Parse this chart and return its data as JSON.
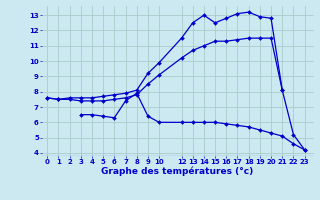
{
  "bg_color": "#cce8f0",
  "grid_color": "#aacccc",
  "line_color": "#0000cc",
  "marker": "D",
  "markersize": 2.0,
  "linewidth": 0.9,
  "xlabel": "Graphe des températures (°c)",
  "xlabel_fontsize": 6.5,
  "xlabel_color": "#0000cc",
  "xlim": [
    -0.5,
    23.8
  ],
  "ylim": [
    3.8,
    13.6
  ],
  "yticks": [
    4,
    5,
    6,
    7,
    8,
    9,
    10,
    11,
    12,
    13
  ],
  "xticks": [
    0,
    1,
    2,
    3,
    4,
    5,
    6,
    7,
    8,
    9,
    10,
    12,
    13,
    14,
    15,
    16,
    17,
    18,
    19,
    20,
    21,
    22,
    23
  ],
  "tick_fontsize": 5.0,
  "line1_x": [
    0,
    1,
    2,
    3,
    4,
    5,
    6,
    7,
    8,
    9,
    10,
    12,
    13,
    14,
    15,
    16,
    17,
    18,
    19,
    20,
    21,
    22,
    23
  ],
  "line1_y": [
    7.6,
    7.5,
    7.6,
    7.6,
    7.6,
    7.7,
    7.8,
    7.9,
    8.1,
    9.2,
    9.9,
    11.5,
    12.5,
    13.0,
    12.5,
    12.8,
    13.1,
    13.2,
    12.9,
    12.8,
    8.1,
    5.2,
    4.2
  ],
  "line2_x": [
    0,
    1,
    2,
    3,
    4,
    5,
    6,
    7,
    8,
    9,
    10,
    12,
    13,
    14,
    15,
    16,
    17,
    18,
    19,
    20,
    21
  ],
  "line2_y": [
    7.6,
    7.5,
    7.5,
    7.4,
    7.4,
    7.4,
    7.5,
    7.6,
    7.8,
    8.5,
    9.1,
    10.2,
    10.7,
    11.0,
    11.3,
    11.3,
    11.4,
    11.5,
    11.5,
    11.5,
    8.1
  ],
  "line3_x": [
    3,
    4,
    5,
    6,
    7,
    8,
    9,
    10,
    12,
    13,
    14,
    15,
    16,
    17,
    18,
    19,
    20,
    21,
    22,
    23
  ],
  "line3_y": [
    6.5,
    6.5,
    6.4,
    6.3,
    7.4,
    7.9,
    6.4,
    6.0,
    6.0,
    6.0,
    6.0,
    6.0,
    5.9,
    5.8,
    5.7,
    5.5,
    5.3,
    5.1,
    4.6,
    4.2
  ]
}
